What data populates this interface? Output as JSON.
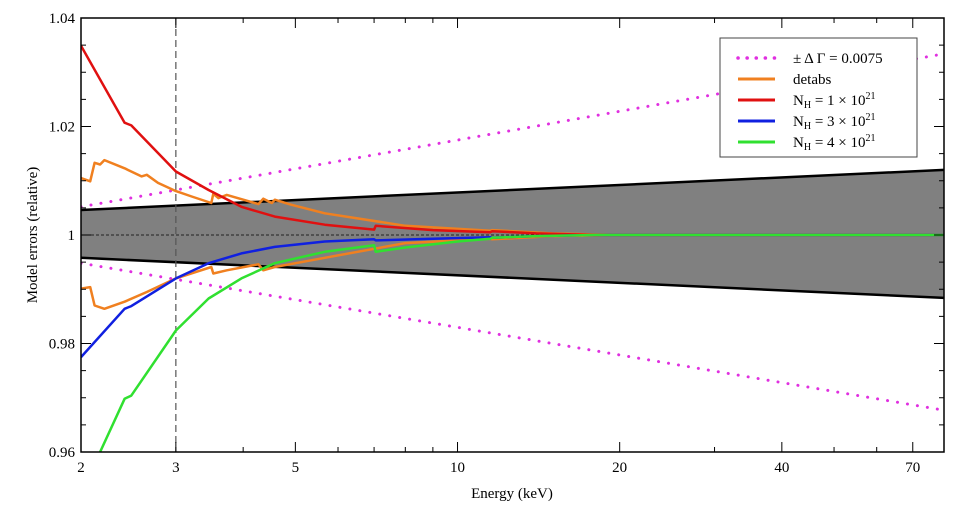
{
  "chart_data": {
    "type": "line",
    "xlabel": "Energy (keV)",
    "ylabel": "Model errors (relative)",
    "xscale": "log",
    "xlim": [
      2,
      80
    ],
    "ylim": [
      0.96,
      1.04
    ],
    "xticks": [
      2,
      3,
      5,
      10,
      20,
      40,
      70
    ],
    "xtick_labels": [
      "2",
      "3",
      "5",
      "10",
      "20",
      "40",
      "70"
    ],
    "yticks": [
      0.96,
      0.98,
      1.0,
      1.02,
      1.04
    ],
    "ytick_labels": [
      "0.96",
      "0.98",
      "1",
      "1.02",
      "1.04"
    ],
    "grid": false,
    "legend_position": "top-right",
    "reference_lines": {
      "vertical_dashed_x": 3,
      "horizontal_dashed_y": 1.0
    },
    "band": {
      "color": "#808080",
      "edge_color": "#000000",
      "upper": [
        [
          2,
          1.0046
        ],
        [
          80,
          1.012
        ]
      ],
      "lower": [
        [
          2,
          0.9958
        ],
        [
          80,
          0.9884
        ]
      ]
    },
    "series": [
      {
        "name": "± Δ Γ = 0.0075",
        "label": {
          "main": "± Δ Γ = 0.0075",
          "sub": "",
          "rest": "",
          "sup": ""
        },
        "color": "#e030e0",
        "style": "dotted",
        "upper": [
          [
            2,
            1.0052
          ],
          [
            80,
            1.0334
          ]
        ],
        "lower": [
          [
            2,
            0.9948
          ],
          [
            80,
            0.9677
          ]
        ]
      },
      {
        "name": "detabs",
        "label": {
          "main": "detabs",
          "sub": "",
          "rest": "",
          "sup": ""
        },
        "color": "#f08020",
        "style": "solid",
        "upper": [
          [
            2,
            1.0105
          ],
          [
            2.08,
            1.0099
          ],
          [
            2.12,
            1.0133
          ],
          [
            2.17,
            1.013
          ],
          [
            2.21,
            1.0138
          ],
          [
            2.41,
            1.0123
          ],
          [
            2.59,
            1.0108
          ],
          [
            2.65,
            1.0111
          ],
          [
            2.78,
            1.0096
          ],
          [
            3,
            1.0081
          ],
          [
            3.21,
            1.0071
          ],
          [
            3.49,
            1.0059
          ],
          [
            3.52,
            1.0076
          ],
          [
            3.6,
            1.0068
          ],
          [
            3.73,
            1.0074
          ],
          [
            4.27,
            1.0057
          ],
          [
            4.36,
            1.0067
          ],
          [
            4.52,
            1.0059
          ],
          [
            4.58,
            1.0065
          ],
          [
            4.9,
            1.0056
          ],
          [
            5.67,
            1.004
          ],
          [
            8,
            1.0017
          ],
          [
            11.5,
            1.0008
          ],
          [
            11.6,
            1.0009
          ],
          [
            15,
            1.0003
          ],
          [
            20,
            1.0
          ],
          [
            80,
            1.0
          ]
        ],
        "lower": [
          [
            2,
            0.9901
          ],
          [
            2.08,
            0.9904
          ],
          [
            2.12,
            0.987
          ],
          [
            2.21,
            0.9864
          ],
          [
            2.41,
            0.9877
          ],
          [
            2.65,
            0.9895
          ],
          [
            3,
            0.992
          ],
          [
            3.49,
            0.9941
          ],
          [
            3.52,
            0.9929
          ],
          [
            3.73,
            0.9935
          ],
          [
            4.27,
            0.9946
          ],
          [
            4.36,
            0.9935
          ],
          [
            4.58,
            0.9941
          ],
          [
            5.67,
            0.9958
          ],
          [
            8,
            0.9985
          ],
          [
            11.5,
            0.9993
          ],
          [
            11.6,
            0.9992
          ],
          [
            15,
            0.9998
          ],
          [
            20,
            1.0
          ],
          [
            80,
            1.0
          ]
        ]
      },
      {
        "name": "NH = 1 × 10^21",
        "label": {
          "main": "N",
          "sub": "H",
          "rest": " = 1 × 10",
          "sup": "21"
        },
        "color": "#e01010",
        "style": "solid",
        "values": [
          [
            2,
            1.0349
          ],
          [
            2.41,
            1.0207
          ],
          [
            2.48,
            1.0202
          ],
          [
            3,
            1.0117
          ],
          [
            3.45,
            1.0083
          ],
          [
            3.97,
            1.0052
          ],
          [
            4.58,
            1.0034
          ],
          [
            5.67,
            1.0019
          ],
          [
            7.0,
            1.001
          ],
          [
            7.05,
            1.0017
          ],
          [
            9,
            1.0009
          ],
          [
            11.5,
            1.0005
          ],
          [
            11.6,
            1.0007
          ],
          [
            14,
            1.0003
          ],
          [
            18,
            1.0
          ],
          [
            80,
            1.0
          ]
        ]
      },
      {
        "name": "NH = 3 × 10^21",
        "label": {
          "main": "N",
          "sub": "H",
          "rest": " = 3 × 10",
          "sup": "21"
        },
        "color": "#1020e0",
        "style": "solid",
        "values": [
          [
            2,
            0.9775
          ],
          [
            2.41,
            0.9864
          ],
          [
            2.48,
            0.9869
          ],
          [
            3,
            0.992
          ],
          [
            3.45,
            0.9948
          ],
          [
            3.97,
            0.9966
          ],
          [
            4.58,
            0.9978
          ],
          [
            5.67,
            0.9988
          ],
          [
            7.0,
            0.9992
          ],
          [
            7.05,
            0.999
          ],
          [
            9,
            0.9993
          ],
          [
            11.5,
            0.9996
          ],
          [
            11.6,
            0.9995
          ],
          [
            14,
            0.9998
          ],
          [
            18,
            1.0
          ],
          [
            80,
            1.0
          ]
        ]
      },
      {
        "name": "NH = 4 × 10^21",
        "label": {
          "main": "N",
          "sub": "H",
          "rest": " = 4 × 10",
          "sup": "21"
        },
        "color": "#30e030",
        "style": "solid",
        "values": [
          [
            2.17,
            0.96
          ],
          [
            2.41,
            0.9698
          ],
          [
            2.48,
            0.9704
          ],
          [
            3,
            0.9824
          ],
          [
            3.45,
            0.9883
          ],
          [
            3.97,
            0.992
          ],
          [
            4.58,
            0.9948
          ],
          [
            5.67,
            0.9969
          ],
          [
            7.0,
            0.9981
          ],
          [
            7.05,
            0.9969
          ],
          [
            8,
            0.9977
          ],
          [
            10,
            0.9988
          ],
          [
            11.5,
            0.9993
          ],
          [
            11.6,
            0.9995
          ],
          [
            14,
            0.9998
          ],
          [
            18,
            1.0
          ],
          [
            80,
            1.0
          ]
        ]
      }
    ]
  }
}
